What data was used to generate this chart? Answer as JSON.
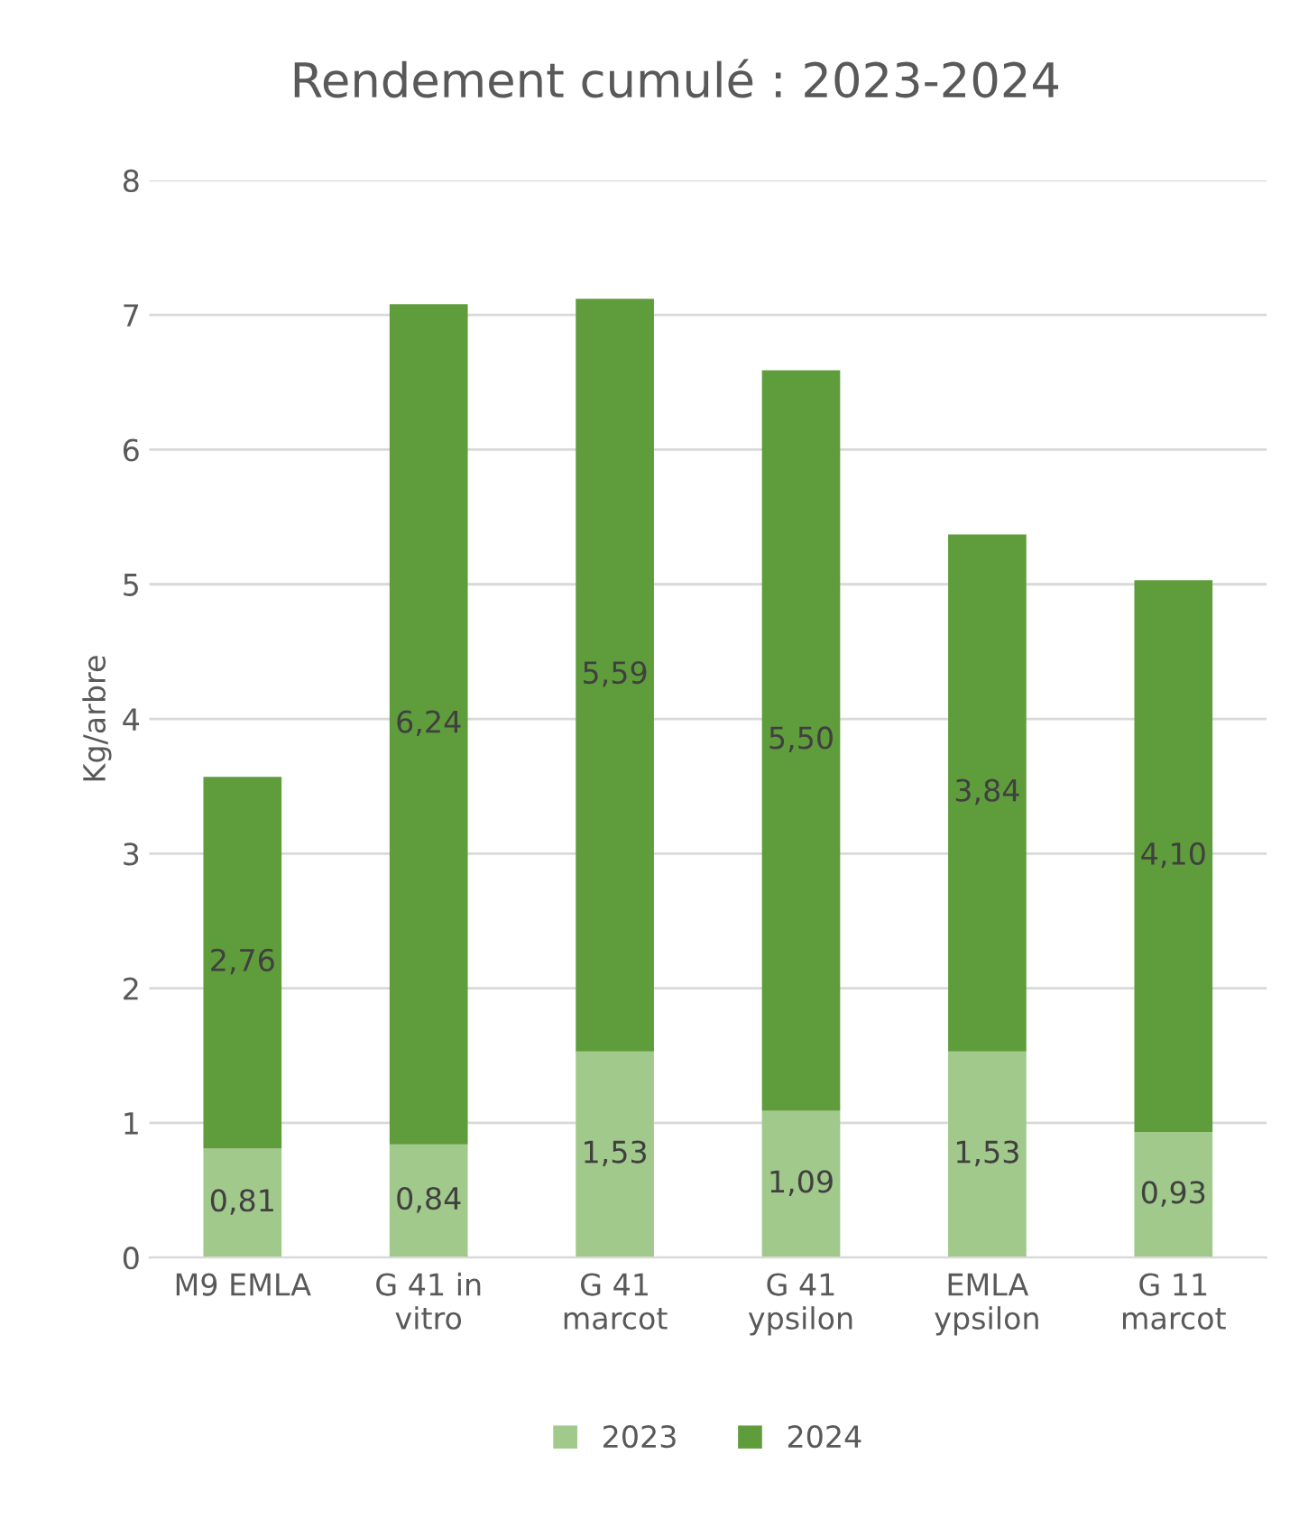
{
  "chart_data": {
    "type": "bar",
    "title": "Rendement cumulé : 2023-2024",
    "ylabel": "Kg/arbre",
    "stacked": true,
    "categories": [
      "M9 EMLA",
      "G 41 in\nvitro",
      "G 41\nmarcot",
      "G 41\nypsilon",
      "EMLA\nypsilon",
      "G 11\nmarcot"
    ],
    "series": [
      {
        "name": "2023",
        "color": "#a0c98b",
        "values": [
          0.81,
          0.84,
          1.53,
          1.09,
          1.53,
          0.93
        ],
        "value_labels": [
          "0,81",
          "0,84",
          "1,53",
          "1,09",
          "1,53",
          "0,93"
        ]
      },
      {
        "name": "2024",
        "color": "#5f9d3c",
        "values": [
          2.76,
          6.24,
          5.59,
          5.5,
          3.84,
          4.1
        ],
        "value_labels": [
          "2,76",
          "6,24",
          "5,59",
          "5,50",
          "3,84",
          "4,10"
        ]
      }
    ],
    "ylim": [
      0,
      8
    ],
    "yticks": [
      0,
      1,
      2,
      3,
      4,
      5,
      6,
      7,
      8
    ],
    "grid": "y",
    "legend": "bottom"
  }
}
